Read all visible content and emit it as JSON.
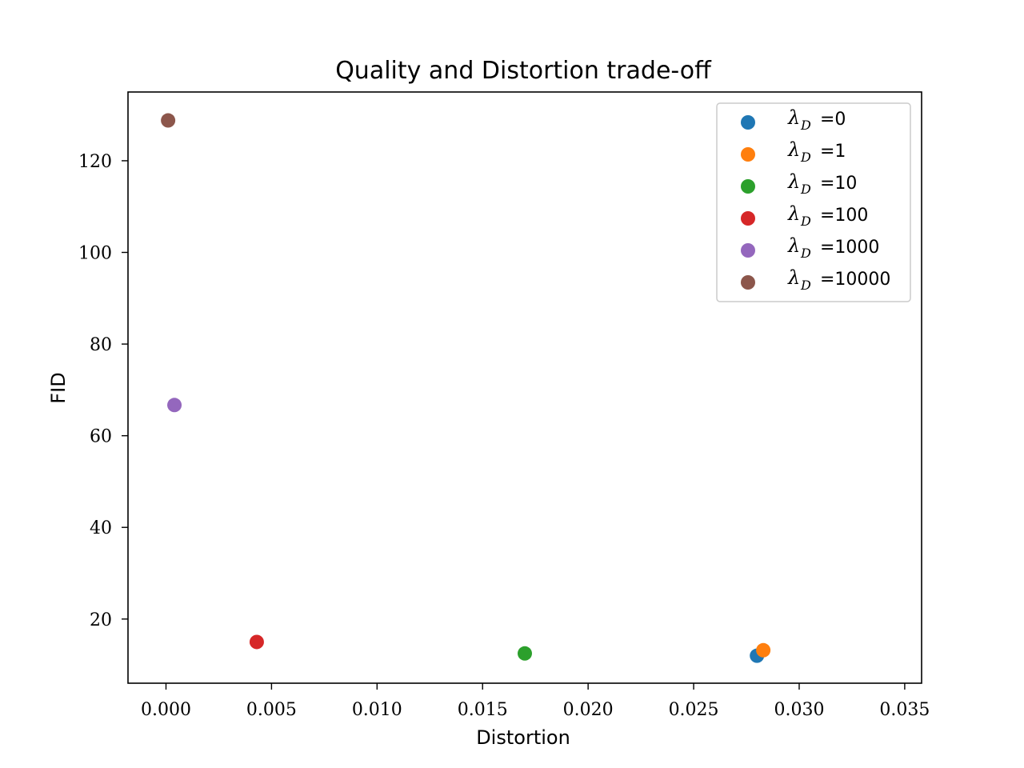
{
  "chart_data": {
    "type": "scatter",
    "title": "Quality and Distortion trade-off",
    "xlabel": "Distortion",
    "ylabel": "FID",
    "xlim": [
      -0.0018,
      0.0358
    ],
    "ylim": [
      6,
      135
    ],
    "xticks": [
      0.0,
      0.005,
      0.01,
      0.015,
      0.02,
      0.025,
      0.03,
      0.035
    ],
    "xtick_labels": [
      "0.000",
      "0.005",
      "0.010",
      "0.015",
      "0.020",
      "0.025",
      "0.030",
      "0.035"
    ],
    "yticks": [
      20,
      40,
      60,
      80,
      100,
      120
    ],
    "ytick_labels": [
      "20",
      "40",
      "60",
      "80",
      "100",
      "120"
    ],
    "grid": false,
    "legend_position": "top-right",
    "legend_symbol": "λ",
    "legend_subscript": "D",
    "series": [
      {
        "name": "=0",
        "color": "#1f77b4",
        "points": [
          {
            "x": 0.028,
            "y": 12.0
          }
        ]
      },
      {
        "name": "=1",
        "color": "#ff7f0e",
        "points": [
          {
            "x": 0.0283,
            "y": 13.2
          }
        ]
      },
      {
        "name": "=10",
        "color": "#2ca02c",
        "points": [
          {
            "x": 0.017,
            "y": 12.5
          }
        ]
      },
      {
        "name": "=100",
        "color": "#d62728",
        "points": [
          {
            "x": 0.0043,
            "y": 15.0
          }
        ]
      },
      {
        "name": "=1000",
        "color": "#9467bd",
        "points": [
          {
            "x": 0.0004,
            "y": 66.7
          }
        ]
      },
      {
        "name": "=10000",
        "color": "#8c564b",
        "points": [
          {
            "x": 0.0001,
            "y": 128.8
          }
        ]
      }
    ]
  }
}
